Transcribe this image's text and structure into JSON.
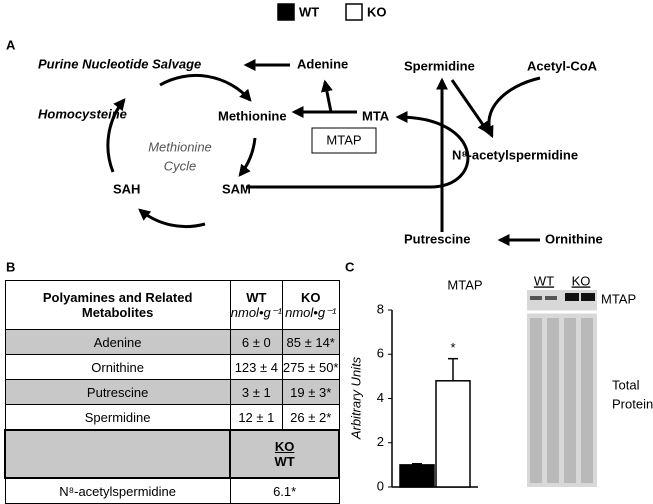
{
  "legend_labels_source": "chart_data.series",
  "panel_a": {
    "label": "A",
    "purine": "Purine Nucleotide Salvage",
    "adenine": "Adenine",
    "spermidine": "Spermidine",
    "acetyl_coa": "Acetyl-CoA",
    "homocysteine": "Homocysteine",
    "methionine": "Methionine",
    "mta": "MTA",
    "mtap": "MTAP",
    "cycle": [
      "Methionine",
      "Cycle"
    ],
    "n8": "N⁸-acetylspermidine",
    "sah": "SAH",
    "sam": "SAM",
    "putrescine": "Putrescine",
    "ornithine": "Ornithine"
  },
  "panel_b": {
    "label": "B",
    "header": [
      "Polyamines and Related Metabolites",
      "WT",
      "KO"
    ],
    "units": [
      "nmol•g⁻¹",
      "nmol•g⁻¹"
    ],
    "rows": [
      [
        "Adenine",
        "6 ± 0",
        "85 ± 14*"
      ],
      [
        "Ornithine",
        "123 ± 4",
        "275 ± 50*"
      ],
      [
        "Putrescine",
        "3 ± 1",
        "19 ± 3*"
      ],
      [
        "Spermidine",
        "12 ± 1",
        "26 ± 2*"
      ]
    ],
    "ratio": {
      "numerator": "KO",
      "denominator": "WT"
    },
    "ratio_row": [
      "N⁸-acetylspermidine",
      "6.1*"
    ]
  },
  "panel_c": {
    "label": "C",
    "blot_lanes": [
      "WT",
      "KO"
    ],
    "blot_band": "MTAP",
    "blot_loading": [
      "Total",
      "Protein"
    ]
  },
  "chart_data": {
    "type": "bar",
    "title": "MTAP",
    "y_label": "Arbitrary Units",
    "series": [
      {
        "name": "WT",
        "color": "#000000",
        "values": [
          1.0
        ],
        "errors": [
          0.05
        ]
      },
      {
        "name": "KO",
        "color": "#ffffff",
        "values": [
          4.8
        ],
        "errors": [
          1.0
        ],
        "annotations": [
          "*"
        ]
      }
    ],
    "ylim": [
      0,
      8
    ],
    "yticks": [
      0,
      2,
      4,
      6,
      8
    ]
  }
}
